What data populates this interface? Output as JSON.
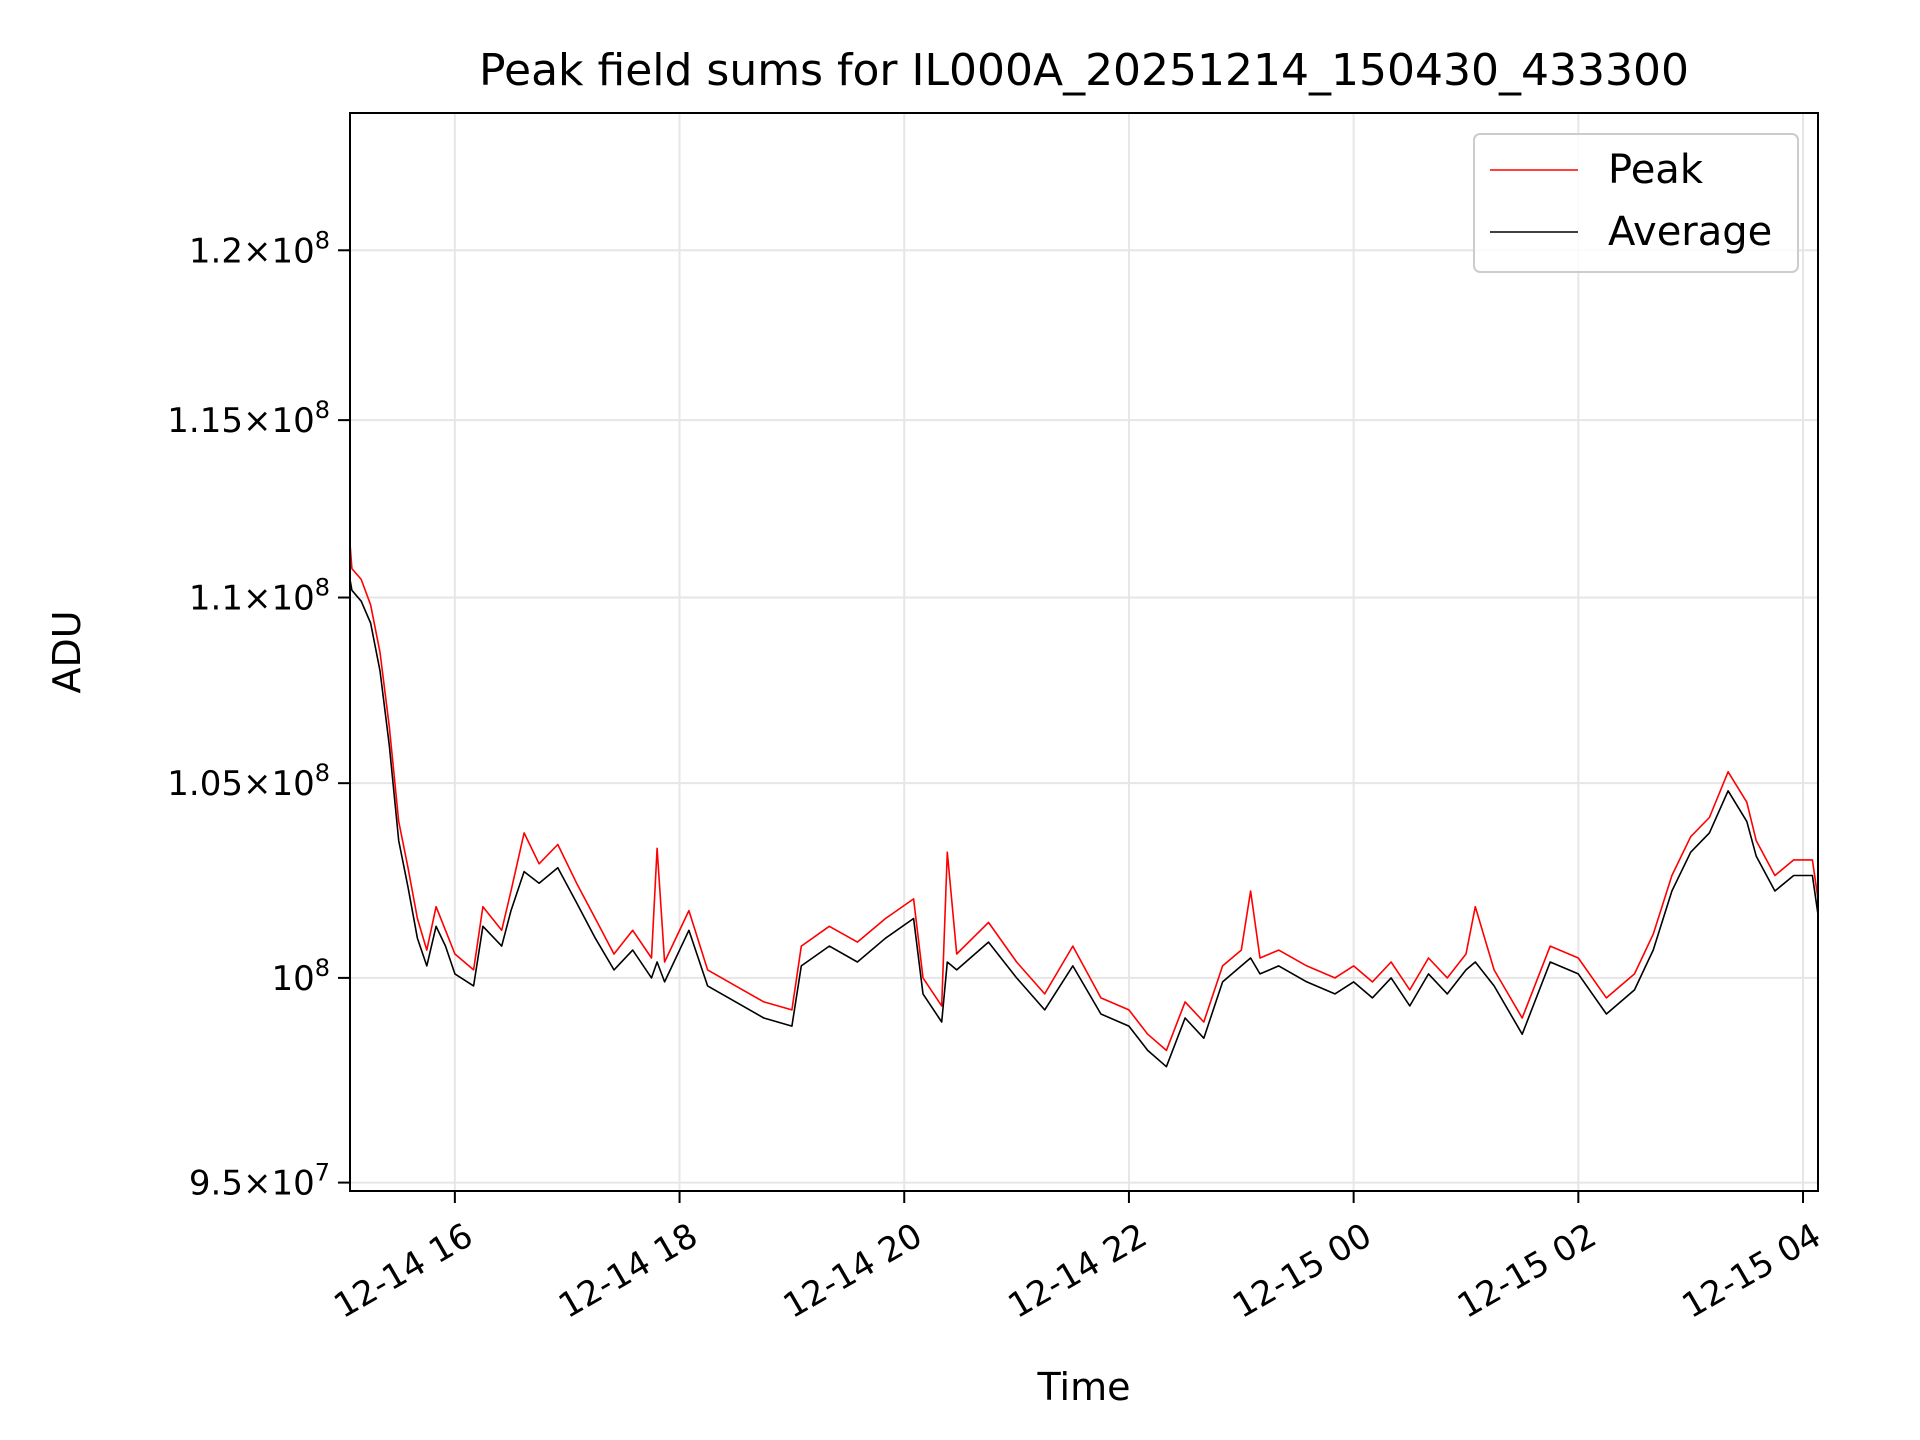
{
  "chart_data": {
    "type": "line",
    "title": "Peak field sums for IL000A_20251214_150430_433300",
    "xlabel": "Time",
    "ylabel": "ADU",
    "yscale": "log",
    "grid": true,
    "legend_position": "top-right",
    "xlim": [
      "2025-12-14 15:04",
      "2025-12-15 04:08"
    ],
    "ylim": [
      94800000,
      124200000
    ],
    "x_ticks": [
      {
        "value": "2025-12-14 16:00",
        "label": "12-14 16"
      },
      {
        "value": "2025-12-14 18:00",
        "label": "12-14 18"
      },
      {
        "value": "2025-12-14 20:00",
        "label": "12-14 20"
      },
      {
        "value": "2025-12-14 22:00",
        "label": "12-14 22"
      },
      {
        "value": "2025-12-15 00:00",
        "label": "12-15 00"
      },
      {
        "value": "2025-12-15 02:00",
        "label": "12-15 02"
      },
      {
        "value": "2025-12-15 04:00",
        "label": "12-15 04"
      }
    ],
    "y_ticks": [
      {
        "value": 95000000,
        "mantissa": "9.5",
        "exponent": "7"
      },
      {
        "value": 100000000,
        "mantissa": "",
        "exponent": "8"
      },
      {
        "value": 105000000,
        "mantissa": "1.05",
        "exponent": "8"
      },
      {
        "value": 110000000,
        "mantissa": "1.1",
        "exponent": "8"
      },
      {
        "value": 115000000,
        "mantissa": "1.15",
        "exponent": "8"
      },
      {
        "value": 120000000,
        "mantissa": "1.2",
        "exponent": "8"
      }
    ],
    "series": [
      {
        "name": "Peak",
        "color": "#ff0000",
        "points": [
          [
            "2025-12-14 15:04",
            111500000
          ],
          [
            "2025-12-14 15:05",
            110800000
          ],
          [
            "2025-12-14 15:10",
            110500000
          ],
          [
            "2025-12-14 15:15",
            109800000
          ],
          [
            "2025-12-14 15:20",
            108500000
          ],
          [
            "2025-12-14 15:25",
            106500000
          ],
          [
            "2025-12-14 15:30",
            104000000
          ],
          [
            "2025-12-14 15:35",
            102800000
          ],
          [
            "2025-12-14 15:40",
            101500000
          ],
          [
            "2025-12-14 15:45",
            100700000
          ],
          [
            "2025-12-14 15:50",
            101800000
          ],
          [
            "2025-12-14 15:55",
            101200000
          ],
          [
            "2025-12-14 16:00",
            100600000
          ],
          [
            "2025-12-14 16:10",
            100200000
          ],
          [
            "2025-12-14 16:15",
            101800000
          ],
          [
            "2025-12-14 16:25",
            101200000
          ],
          [
            "2025-12-14 16:30",
            102200000
          ],
          [
            "2025-12-14 16:37",
            103700000
          ],
          [
            "2025-12-14 16:45",
            102900000
          ],
          [
            "2025-12-14 16:55",
            103400000
          ],
          [
            "2025-12-14 17:05",
            102400000
          ],
          [
            "2025-12-14 17:15",
            101500000
          ],
          [
            "2025-12-14 17:25",
            100600000
          ],
          [
            "2025-12-14 17:35",
            101200000
          ],
          [
            "2025-12-14 17:45",
            100500000
          ],
          [
            "2025-12-14 17:48",
            103300000
          ],
          [
            "2025-12-14 17:52",
            100400000
          ],
          [
            "2025-12-14 18:05",
            101700000
          ],
          [
            "2025-12-14 18:15",
            100200000
          ],
          [
            "2025-12-14 18:30",
            99800000
          ],
          [
            "2025-12-14 18:45",
            99400000
          ],
          [
            "2025-12-14 19:00",
            99200000
          ],
          [
            "2025-12-14 19:05",
            100800000
          ],
          [
            "2025-12-14 19:20",
            101300000
          ],
          [
            "2025-12-14 19:35",
            100900000
          ],
          [
            "2025-12-14 19:50",
            101500000
          ],
          [
            "2025-12-14 20:05",
            102000000
          ],
          [
            "2025-12-14 20:10",
            100000000
          ],
          [
            "2025-12-14 20:20",
            99300000
          ],
          [
            "2025-12-14 20:23",
            103200000
          ],
          [
            "2025-12-14 20:28",
            100600000
          ],
          [
            "2025-12-14 20:45",
            101400000
          ],
          [
            "2025-12-14 21:00",
            100400000
          ],
          [
            "2025-12-14 21:15",
            99600000
          ],
          [
            "2025-12-14 21:30",
            100800000
          ],
          [
            "2025-12-14 21:45",
            99500000
          ],
          [
            "2025-12-14 22:00",
            99200000
          ],
          [
            "2025-12-14 22:10",
            98600000
          ],
          [
            "2025-12-14 22:20",
            98200000
          ],
          [
            "2025-12-14 22:30",
            99400000
          ],
          [
            "2025-12-14 22:40",
            98900000
          ],
          [
            "2025-12-14 22:50",
            100300000
          ],
          [
            "2025-12-14 23:00",
            100700000
          ],
          [
            "2025-12-14 23:05",
            102200000
          ],
          [
            "2025-12-14 23:10",
            100500000
          ],
          [
            "2025-12-14 23:20",
            100700000
          ],
          [
            "2025-12-14 23:35",
            100300000
          ],
          [
            "2025-12-14 23:50",
            100000000
          ],
          [
            "2025-12-15 00:00",
            100300000
          ],
          [
            "2025-12-15 00:10",
            99900000
          ],
          [
            "2025-12-15 00:20",
            100400000
          ],
          [
            "2025-12-15 00:30",
            99700000
          ],
          [
            "2025-12-15 00:40",
            100500000
          ],
          [
            "2025-12-15 00:50",
            100000000
          ],
          [
            "2025-12-15 01:00",
            100600000
          ],
          [
            "2025-12-15 01:05",
            101800000
          ],
          [
            "2025-12-15 01:15",
            100200000
          ],
          [
            "2025-12-15 01:30",
            99000000
          ],
          [
            "2025-12-15 01:45",
            100800000
          ],
          [
            "2025-12-15 02:00",
            100500000
          ],
          [
            "2025-12-15 02:15",
            99500000
          ],
          [
            "2025-12-15 02:30",
            100100000
          ],
          [
            "2025-12-15 02:40",
            101100000
          ],
          [
            "2025-12-15 02:50",
            102600000
          ],
          [
            "2025-12-15 03:00",
            103600000
          ],
          [
            "2025-12-15 03:10",
            104100000
          ],
          [
            "2025-12-15 03:20",
            105300000
          ],
          [
            "2025-12-15 03:30",
            104500000
          ],
          [
            "2025-12-15 03:35",
            103500000
          ],
          [
            "2025-12-15 03:45",
            102600000
          ],
          [
            "2025-12-15 03:55",
            103000000
          ],
          [
            "2025-12-15 04:05",
            103000000
          ],
          [
            "2025-12-15 04:08",
            102000000
          ]
        ]
      },
      {
        "name": "Average",
        "color": "#000000",
        "points": [
          [
            "2025-12-14 15:04",
            110500000
          ],
          [
            "2025-12-14 15:05",
            110200000
          ],
          [
            "2025-12-14 15:10",
            109900000
          ],
          [
            "2025-12-14 15:15",
            109300000
          ],
          [
            "2025-12-14 15:20",
            108000000
          ],
          [
            "2025-12-14 15:25",
            106000000
          ],
          [
            "2025-12-14 15:30",
            103500000
          ],
          [
            "2025-12-14 15:35",
            102300000
          ],
          [
            "2025-12-14 15:40",
            101000000
          ],
          [
            "2025-12-14 15:45",
            100300000
          ],
          [
            "2025-12-14 15:50",
            101300000
          ],
          [
            "2025-12-14 15:55",
            100800000
          ],
          [
            "2025-12-14 16:00",
            100100000
          ],
          [
            "2025-12-14 16:10",
            99800000
          ],
          [
            "2025-12-14 16:15",
            101300000
          ],
          [
            "2025-12-14 16:25",
            100800000
          ],
          [
            "2025-12-14 16:30",
            101700000
          ],
          [
            "2025-12-14 16:37",
            102700000
          ],
          [
            "2025-12-14 16:45",
            102400000
          ],
          [
            "2025-12-14 16:55",
            102800000
          ],
          [
            "2025-12-14 17:05",
            101900000
          ],
          [
            "2025-12-14 17:15",
            101000000
          ],
          [
            "2025-12-14 17:25",
            100200000
          ],
          [
            "2025-12-14 17:35",
            100700000
          ],
          [
            "2025-12-14 17:45",
            100000000
          ],
          [
            "2025-12-14 17:48",
            100400000
          ],
          [
            "2025-12-14 17:52",
            99900000
          ],
          [
            "2025-12-14 18:05",
            101200000
          ],
          [
            "2025-12-14 18:15",
            99800000
          ],
          [
            "2025-12-14 18:30",
            99400000
          ],
          [
            "2025-12-14 18:45",
            99000000
          ],
          [
            "2025-12-14 19:00",
            98800000
          ],
          [
            "2025-12-14 19:05",
            100300000
          ],
          [
            "2025-12-14 19:20",
            100800000
          ],
          [
            "2025-12-14 19:35",
            100400000
          ],
          [
            "2025-12-14 19:50",
            101000000
          ],
          [
            "2025-12-14 20:05",
            101500000
          ],
          [
            "2025-12-14 20:10",
            99600000
          ],
          [
            "2025-12-14 20:20",
            98900000
          ],
          [
            "2025-12-14 20:23",
            100400000
          ],
          [
            "2025-12-14 20:28",
            100200000
          ],
          [
            "2025-12-14 20:45",
            100900000
          ],
          [
            "2025-12-14 21:00",
            100000000
          ],
          [
            "2025-12-14 21:15",
            99200000
          ],
          [
            "2025-12-14 21:30",
            100300000
          ],
          [
            "2025-12-14 21:45",
            99100000
          ],
          [
            "2025-12-14 22:00",
            98800000
          ],
          [
            "2025-12-14 22:10",
            98200000
          ],
          [
            "2025-12-14 22:20",
            97800000
          ],
          [
            "2025-12-14 22:30",
            99000000
          ],
          [
            "2025-12-14 22:40",
            98500000
          ],
          [
            "2025-12-14 22:50",
            99900000
          ],
          [
            "2025-12-14 23:00",
            100300000
          ],
          [
            "2025-12-14 23:05",
            100500000
          ],
          [
            "2025-12-14 23:10",
            100100000
          ],
          [
            "2025-12-14 23:20",
            100300000
          ],
          [
            "2025-12-14 23:35",
            99900000
          ],
          [
            "2025-12-14 23:50",
            99600000
          ],
          [
            "2025-12-15 00:00",
            99900000
          ],
          [
            "2025-12-15 00:10",
            99500000
          ],
          [
            "2025-12-15 00:20",
            100000000
          ],
          [
            "2025-12-15 00:30",
            99300000
          ],
          [
            "2025-12-15 00:40",
            100100000
          ],
          [
            "2025-12-15 00:50",
            99600000
          ],
          [
            "2025-12-15 01:00",
            100200000
          ],
          [
            "2025-12-15 01:05",
            100400000
          ],
          [
            "2025-12-15 01:15",
            99800000
          ],
          [
            "2025-12-15 01:30",
            98600000
          ],
          [
            "2025-12-15 01:45",
            100400000
          ],
          [
            "2025-12-15 02:00",
            100100000
          ],
          [
            "2025-12-15 02:15",
            99100000
          ],
          [
            "2025-12-15 02:30",
            99700000
          ],
          [
            "2025-12-15 02:40",
            100700000
          ],
          [
            "2025-12-15 02:50",
            102200000
          ],
          [
            "2025-12-15 03:00",
            103200000
          ],
          [
            "2025-12-15 03:10",
            103700000
          ],
          [
            "2025-12-15 03:20",
            104800000
          ],
          [
            "2025-12-15 03:30",
            104000000
          ],
          [
            "2025-12-15 03:35",
            103100000
          ],
          [
            "2025-12-15 03:45",
            102200000
          ],
          [
            "2025-12-15 03:55",
            102600000
          ],
          [
            "2025-12-15 04:05",
            102600000
          ],
          [
            "2025-12-15 04:08",
            101600000
          ]
        ]
      }
    ]
  }
}
